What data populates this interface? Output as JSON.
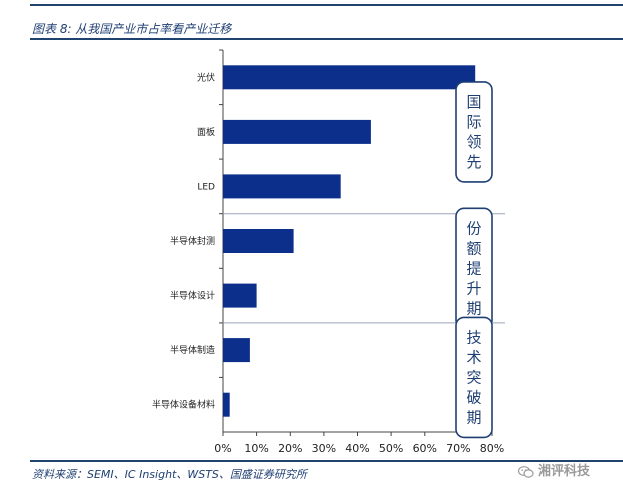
{
  "figure": {
    "title": "图表 8: 从我国产业市占率看产业迁移",
    "source": "资料来源：SEMI、IC Insight、WSTS、国盛证券研究所",
    "watermark": "湘评科技",
    "watermark_icon": "wechat-icon"
  },
  "chart_data": {
    "type": "bar",
    "orientation": "horizontal",
    "categories": [
      "光伏",
      "面板",
      "LED",
      "半导体封测",
      "半导体设计",
      "半导体制造",
      "半导体设备材料"
    ],
    "values": [
      75,
      44,
      35,
      21,
      10,
      8,
      2
    ],
    "x_ticks": [
      "0%",
      "10%",
      "20%",
      "30%",
      "40%",
      "50%",
      "60%",
      "70%",
      "80%"
    ],
    "xlim": [
      0,
      80
    ],
    "unit": "%",
    "bar_color": "#0d2f8c",
    "grid": false,
    "groups": [
      {
        "label": "国际领先",
        "categories": [
          "光伏",
          "面板",
          "LED"
        ]
      },
      {
        "label": "份额提升期",
        "categories": [
          "半导体封测",
          "半导体设计"
        ]
      },
      {
        "label": "技术突破期",
        "categories": [
          "半导体制造",
          "半导体设备材料"
        ]
      }
    ],
    "group_border_color": "#1f3f73"
  }
}
